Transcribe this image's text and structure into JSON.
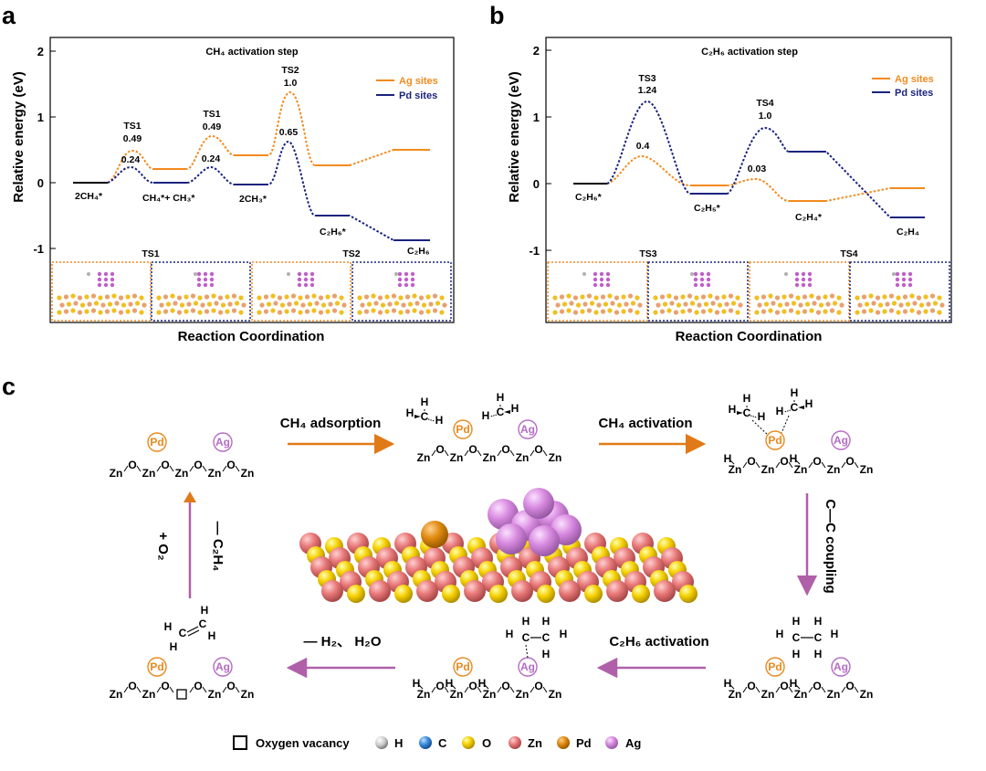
{
  "panel_a": {
    "letter": "a",
    "title": "CH₄ activation step",
    "ylabel": "Relative energy (eV)",
    "xlabel": "Reaction Coordination",
    "legend": [
      "Ag sites",
      "Pd sites"
    ],
    "yticks": [
      "2",
      "1",
      "0",
      "-1"
    ],
    "states": [
      "2CH₄*",
      "CH₄*+ CH₃*",
      "2CH₃*",
      "C₂H₆*",
      "C₂H₆"
    ],
    "ts_labels": [
      "TS1",
      "TS1",
      "TS2"
    ],
    "values": [
      "0.49",
      "0.24",
      "0.49",
      "0.24",
      "1.0",
      "0.65"
    ],
    "struct_labels": [
      "TS1",
      "TS2"
    ]
  },
  "panel_b": {
    "letter": "b",
    "title": "C₂H₆ activation step",
    "ylabel": "Relative energy (eV)",
    "xlabel": "Reaction Coordination",
    "legend": [
      "Ag sites",
      "Pd sites"
    ],
    "yticks": [
      "2",
      "1",
      "0",
      "-1"
    ],
    "states": [
      "C₂H₆*",
      "C₂H₅*",
      "C₂H₄*",
      "C₂H₄"
    ],
    "ts_labels": [
      "TS3",
      "TS4"
    ],
    "values": [
      "1.24",
      "0.4",
      "1.0",
      "0.03"
    ],
    "struct_labels": [
      "TS3",
      "TS4"
    ]
  },
  "panel_c": {
    "letter": "c",
    "steps": {
      "adsorption": "CH₄ adsorption",
      "activation": "CH₄ activation",
      "coupling": "C—C coupling",
      "c2h6_activation": "C₂H₆ activation",
      "h2_h2o": "— H₂、 H₂O",
      "plus_o2": "+ O₂",
      "minus_c2h4": "— C₂H₄"
    },
    "chain": [
      "Zn",
      "O",
      "Zn",
      "O",
      "Zn",
      "O",
      "Zn",
      "O",
      "Zn"
    ],
    "pd": "Pd",
    "ag": "Ag",
    "atom_labels": {
      "h": "H",
      "c": "C"
    },
    "legend": [
      "Oxygen vacancy",
      "H",
      "C",
      "O",
      "Zn",
      "Pd",
      "Ag"
    ]
  },
  "colors": {
    "ag": "#f28a1e",
    "pd": "#1a237e",
    "arrow_orange": "#e07a18",
    "arrow_purple": "#b060a8",
    "pd_circle": "#e8891e",
    "ag_circle": "#b46cc4",
    "zn": "#e87878",
    "o": "#f5d000",
    "c": "#3a8ee0",
    "pd_atom": "#e08a10",
    "ag_atom": "#d88ae0"
  },
  "chart_data": [
    {
      "type": "line",
      "title": "CH₄ activation step",
      "xlabel": "Reaction Coordination",
      "ylabel": "Relative energy (eV)",
      "ylim": [
        -1,
        2
      ],
      "yticks": [
        -1,
        0,
        1,
        2
      ],
      "series": [
        {
          "name": "Ag sites",
          "points": [
            [
              "2CH₄*",
              0
            ],
            [
              "TS1",
              0.49
            ],
            [
              "CH₄*+ CH₃*",
              0.2
            ],
            [
              "TS1",
              0.7
            ],
            [
              "2CH₃*",
              0.42
            ],
            [
              "TS2",
              1.38
            ],
            [
              "C₂H₆*",
              0.27
            ],
            [
              "C₂H₆",
              0.5
            ]
          ]
        },
        {
          "name": "Pd sites",
          "points": [
            [
              "2CH₄*",
              0
            ],
            [
              "TS1",
              0.24
            ],
            [
              "CH₄*+ CH₃*",
              0
            ],
            [
              "TS1",
              0.24
            ],
            [
              "2CH₃*",
              -0.03
            ],
            [
              "TS2",
              0.62
            ],
            [
              "C₂H₆*",
              -0.5
            ],
            [
              "C₂H₆",
              -0.86
            ]
          ]
        }
      ]
    },
    {
      "type": "line",
      "title": "C₂H₆ activation step",
      "xlabel": "Reaction Coordination",
      "ylabel": "Relative energy (eV)",
      "ylim": [
        -1,
        2
      ],
      "yticks": [
        -1,
        0,
        1,
        2
      ],
      "series": [
        {
          "name": "Ag sites",
          "points": [
            [
              "C₂H₆*",
              0
            ],
            [
              "TS3",
              0.4
            ],
            [
              "C₂H₅*",
              -0.03
            ],
            [
              "TS4",
              0.06
            ],
            [
              "C₂H₄*",
              -0.28
            ],
            [
              "C₂H₄",
              -0.07
            ]
          ]
        },
        {
          "name": "Pd sites",
          "points": [
            [
              "C₂H₆*",
              0
            ],
            [
              "TS3",
              1.22
            ],
            [
              "C₂H₅*",
              -0.15
            ],
            [
              "TS4",
              0.83
            ],
            [
              "C₂H₄*",
              0.47
            ],
            [
              "C₂H₄",
              -0.5
            ]
          ]
        }
      ]
    }
  ]
}
